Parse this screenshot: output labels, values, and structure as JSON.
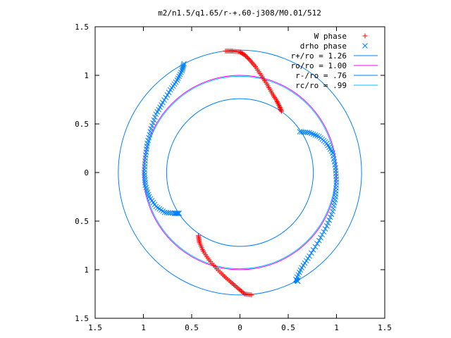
{
  "chart_data": {
    "type": "scatter",
    "title": "m2/n1.5/q1.65/r-+.60-j308/M0.01/512",
    "xlabel": "",
    "ylabel": "",
    "xlim": [
      -1.5,
      1.5
    ],
    "ylim": [
      -1.5,
      1.5
    ],
    "xticks": [
      {
        "value": -1.5,
        "label": "1.5"
      },
      {
        "value": -1.0,
        "label": "1"
      },
      {
        "value": -0.5,
        "label": "0.5"
      },
      {
        "value": 0.0,
        "label": "0"
      },
      {
        "value": 0.5,
        "label": "0.5"
      },
      {
        "value": 1.0,
        "label": "1"
      },
      {
        "value": 1.5,
        "label": "1.5"
      }
    ],
    "yticks": [
      {
        "value": 1.5,
        "label": "1.5"
      },
      {
        "value": 1.0,
        "label": "1"
      },
      {
        "value": 0.5,
        "label": "0.5"
      },
      {
        "value": 0.0,
        "label": "0"
      },
      {
        "value": -0.5,
        "label": "0.5"
      },
      {
        "value": -1.0,
        "label": "1"
      },
      {
        "value": -1.5,
        "label": "1.5"
      }
    ],
    "grid": false,
    "legend_position": "top-right",
    "series": [
      {
        "name": "W phase",
        "kind": "points",
        "marker": "plus",
        "color": "#ff0000",
        "points": [
          [
            -0.15,
            1.25
          ],
          [
            -0.08,
            1.25
          ],
          [
            0.0,
            1.24
          ],
          [
            0.05,
            1.21
          ],
          [
            0.1,
            1.16
          ],
          [
            0.16,
            1.09
          ],
          [
            0.22,
            1.0
          ],
          [
            0.28,
            0.91
          ],
          [
            0.33,
            0.82
          ],
          [
            0.38,
            0.74
          ],
          [
            0.41,
            0.68
          ],
          [
            0.43,
            0.63
          ],
          [
            -0.43,
            -0.65
          ],
          [
            -0.42,
            -0.72
          ],
          [
            -0.38,
            -0.81
          ],
          [
            -0.32,
            -0.9
          ],
          [
            -0.24,
            -0.99
          ],
          [
            -0.16,
            -1.07
          ],
          [
            -0.08,
            -1.14
          ],
          [
            -0.01,
            -1.2
          ],
          [
            0.05,
            -1.25
          ],
          [
            0.12,
            -1.26
          ]
        ]
      },
      {
        "name": "drho phase",
        "kind": "points",
        "marker": "cross",
        "color": "#0080ff",
        "points": [
          [
            -0.58,
            1.12
          ],
          [
            -0.6,
            1.05
          ],
          [
            -0.65,
            0.95
          ],
          [
            -0.72,
            0.85
          ],
          [
            -0.8,
            0.72
          ],
          [
            -0.87,
            0.6
          ],
          [
            -0.92,
            0.45
          ],
          [
            -0.96,
            0.3
          ],
          [
            -0.98,
            0.15
          ],
          [
            -0.99,
            0.0
          ],
          [
            -0.98,
            -0.13
          ],
          [
            -0.94,
            -0.25
          ],
          [
            -0.87,
            -0.35
          ],
          [
            -0.78,
            -0.41
          ],
          [
            -0.68,
            -0.42
          ],
          [
            -0.63,
            -0.42
          ],
          [
            0.62,
            0.42
          ],
          [
            0.72,
            0.41
          ],
          [
            0.82,
            0.37
          ],
          [
            0.9,
            0.3
          ],
          [
            0.96,
            0.2
          ],
          [
            0.99,
            0.05
          ],
          [
            1.0,
            -0.1
          ],
          [
            0.99,
            -0.25
          ],
          [
            0.96,
            -0.4
          ],
          [
            0.9,
            -0.55
          ],
          [
            0.82,
            -0.7
          ],
          [
            0.72,
            -0.86
          ],
          [
            0.64,
            -0.98
          ],
          [
            0.58,
            -1.1
          ],
          [
            0.6,
            -1.12
          ]
        ]
      },
      {
        "name": "r+/ro = 1.26",
        "kind": "circle",
        "radius": 1.26,
        "color": "#0080ff"
      },
      {
        "name": "ro/ro = 1.00",
        "kind": "circle",
        "radius": 1.0,
        "color": "#ff00ff"
      },
      {
        "name": "r-/ro = .76",
        "kind": "circle",
        "radius": 0.76,
        "color": "#0080ff"
      },
      {
        "name": "rc/ro = .99",
        "kind": "circle",
        "radius": 0.99,
        "color": "#00c0ff"
      }
    ]
  }
}
